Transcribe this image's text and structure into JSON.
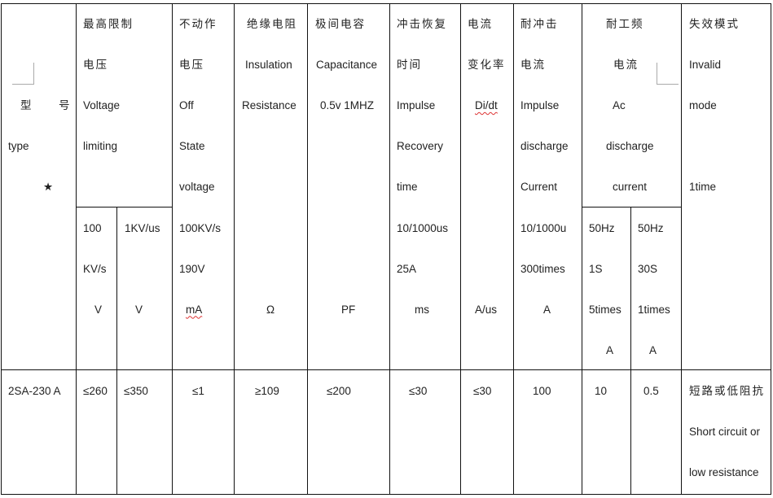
{
  "header": {
    "type": {
      "cn1": "型",
      "cn2": "号",
      "en": "type",
      "star": "★"
    },
    "limiting_voltage": {
      "cn1": "最高限制",
      "cn2": "电压",
      "en1": "Voltage",
      "en2": "limiting",
      "sub1": {
        "l1": "100",
        "l2": "KV/s",
        "unit": "V"
      },
      "sub2": {
        "l1": "1KV/us",
        "unit": "V"
      }
    },
    "off_state": {
      "cn1": "不动作",
      "cn2": "电压",
      "en1": "Off",
      "en2": "State",
      "en3": "voltage",
      "c1": "100KV/s",
      "c2": "190V",
      "unit": "mA"
    },
    "insulation": {
      "cn": "绝缘电阻",
      "en1": "Insulation",
      "en2": "Resistance",
      "unit": "Ω"
    },
    "capacitance": {
      "cn": "极间电容",
      "en1": "Capacitance",
      "en2": "0.5v 1MHZ",
      "unit": "PF"
    },
    "recovery": {
      "cn1": "冲击恢复",
      "cn2": "时间",
      "en1": "Impulse",
      "en2": "Recovery",
      "en3": "time",
      "c1": "10/1000us",
      "c2": "25A",
      "unit": "ms"
    },
    "current_rate": {
      "cn1": "电流",
      "cn2": "变化率",
      "en": "Di/dt",
      "unit": "A/us"
    },
    "impulse_discharge": {
      "cn1": "耐冲击",
      "cn2": "电流",
      "en1": "Impulse",
      "en2": "discharge",
      "en3": "Current",
      "c1": "10/1000u",
      "c2": "300times",
      "unit": "A"
    },
    "ac_discharge": {
      "cn1": "耐工频",
      "cn2": "电流",
      "en1": "Ac",
      "en2": "discharge",
      "en3": "current",
      "sub1": {
        "l1": "50Hz",
        "l2": "1S",
        "l3": "5times",
        "unit": "A"
      },
      "sub2": {
        "l1": "50Hz",
        "l2": "30S",
        "l3": "1times",
        "unit": "A"
      }
    },
    "failure": {
      "cn": "失效模式",
      "en1": "Invalid",
      "en2": "mode",
      "c1": "1time"
    }
  },
  "rows": [
    {
      "type": "2SA-230 A",
      "limit_100": "≤260",
      "limit_1k": "≤350",
      "off_state": "≤1",
      "insulation": "≥109",
      "capacitance": "≤200",
      "recovery": "≤30",
      "current_rate": "≤30",
      "impulse": "100",
      "ac_1s": "10",
      "ac_30s": "0.5",
      "failure": {
        "cn": "短路或低阻抗",
        "en1": "Short circuit or",
        "en2": "low resistance"
      }
    }
  ]
}
